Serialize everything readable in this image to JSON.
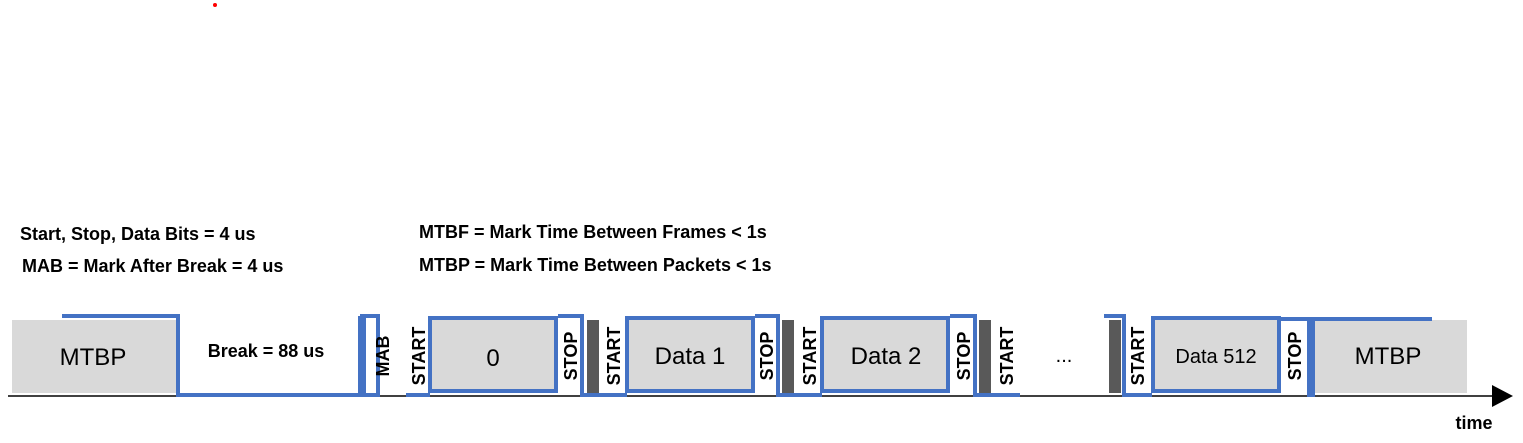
{
  "notes": {
    "bit_times": "Start, Stop, Data Bits = 4 us",
    "mab_def": "MAB = Mark After Break  = 4 us",
    "mtbf_def": "MTBF = Mark Time Between Frames  < 1s",
    "mtbp_def": "MTBP = Mark Time Between Packets  < 1s"
  },
  "signal": {
    "mtbp_start": "MTBP",
    "break": "Break = 88 us",
    "mab": "MAB",
    "start_1": "START",
    "frame_0": "0",
    "stop_1": "STOP",
    "start_2": "START",
    "frame_1": "Data 1",
    "stop_2": "STOP",
    "start_3": "START",
    "frame_2": "Data 2",
    "stop_3": "STOP",
    "start_4": "START",
    "ellipsis": "...",
    "start_5": "START",
    "frame_512": "Data 512",
    "stop_5": "STOP",
    "mtbp_end": "MTBP"
  },
  "axis": {
    "label": "time"
  },
  "colors": {
    "signal_line": "#4472c4",
    "slot_fill": "#d9d9d9",
    "mtbf_mark": "#595959",
    "axis": "#000000",
    "dot": "#ff0000"
  }
}
